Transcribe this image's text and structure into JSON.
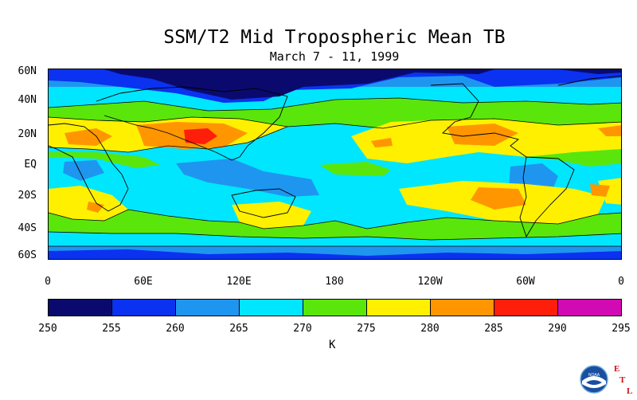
{
  "title": "SSM/T2 Mid Tropospheric Mean TB",
  "subtitle": "March 7 - 11, 1999",
  "lat_labels": [
    "60N",
    "40N",
    "20N",
    "EQ",
    "20S",
    "40S",
    "60S"
  ],
  "lon_labels": [
    "0",
    "60E",
    "120E",
    "180",
    "120W",
    "60W",
    "0"
  ],
  "colorbar": {
    "ticks": [
      "250",
      "255",
      "260",
      "265",
      "270",
      "275",
      "280",
      "285",
      "290",
      "295"
    ],
    "colors": [
      "#0a0a6e",
      "#0a32f0",
      "#1e96f0",
      "#00e6ff",
      "#5ae60a",
      "#fff000",
      "#ff9600",
      "#ff1e0a",
      "#d20ab4"
    ],
    "units": "K"
  },
  "logo": {
    "agency": "NOAA",
    "letters": [
      "E",
      "T",
      "L"
    ]
  }
}
